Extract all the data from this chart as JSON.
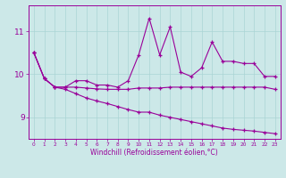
{
  "xlabel": "Windchill (Refroidissement éolien,°C)",
  "x": [
    0,
    1,
    2,
    3,
    4,
    5,
    6,
    7,
    8,
    9,
    10,
    11,
    12,
    13,
    14,
    15,
    16,
    17,
    18,
    19,
    20,
    21,
    22,
    23
  ],
  "line_max": [
    10.5,
    9.9,
    9.7,
    9.7,
    9.85,
    9.85,
    9.75,
    9.75,
    9.7,
    9.85,
    10.45,
    11.3,
    10.45,
    11.1,
    10.05,
    9.95,
    10.15,
    10.75,
    10.3,
    10.3,
    10.25,
    10.25,
    9.95,
    9.95
  ],
  "line_mean": [
    10.5,
    9.9,
    9.7,
    9.7,
    9.7,
    9.68,
    9.66,
    9.65,
    9.65,
    9.65,
    9.68,
    9.68,
    9.68,
    9.7,
    9.7,
    9.7,
    9.7,
    9.7,
    9.7,
    9.7,
    9.7,
    9.7,
    9.7,
    9.65
  ],
  "line_min": [
    10.5,
    9.9,
    9.7,
    9.65,
    9.55,
    9.45,
    9.38,
    9.32,
    9.25,
    9.18,
    9.12,
    9.12,
    9.05,
    9.0,
    8.95,
    8.9,
    8.85,
    8.8,
    8.75,
    8.72,
    8.7,
    8.68,
    8.65,
    8.62
  ],
  "color": "#990099",
  "bg_color": "#cce8e8",
  "grid_color": "#aad4d4",
  "ylim": [
    8.5,
    11.6
  ],
  "yticks": [
    9,
    10,
    11
  ],
  "xlim": [
    -0.5,
    23.5
  ]
}
